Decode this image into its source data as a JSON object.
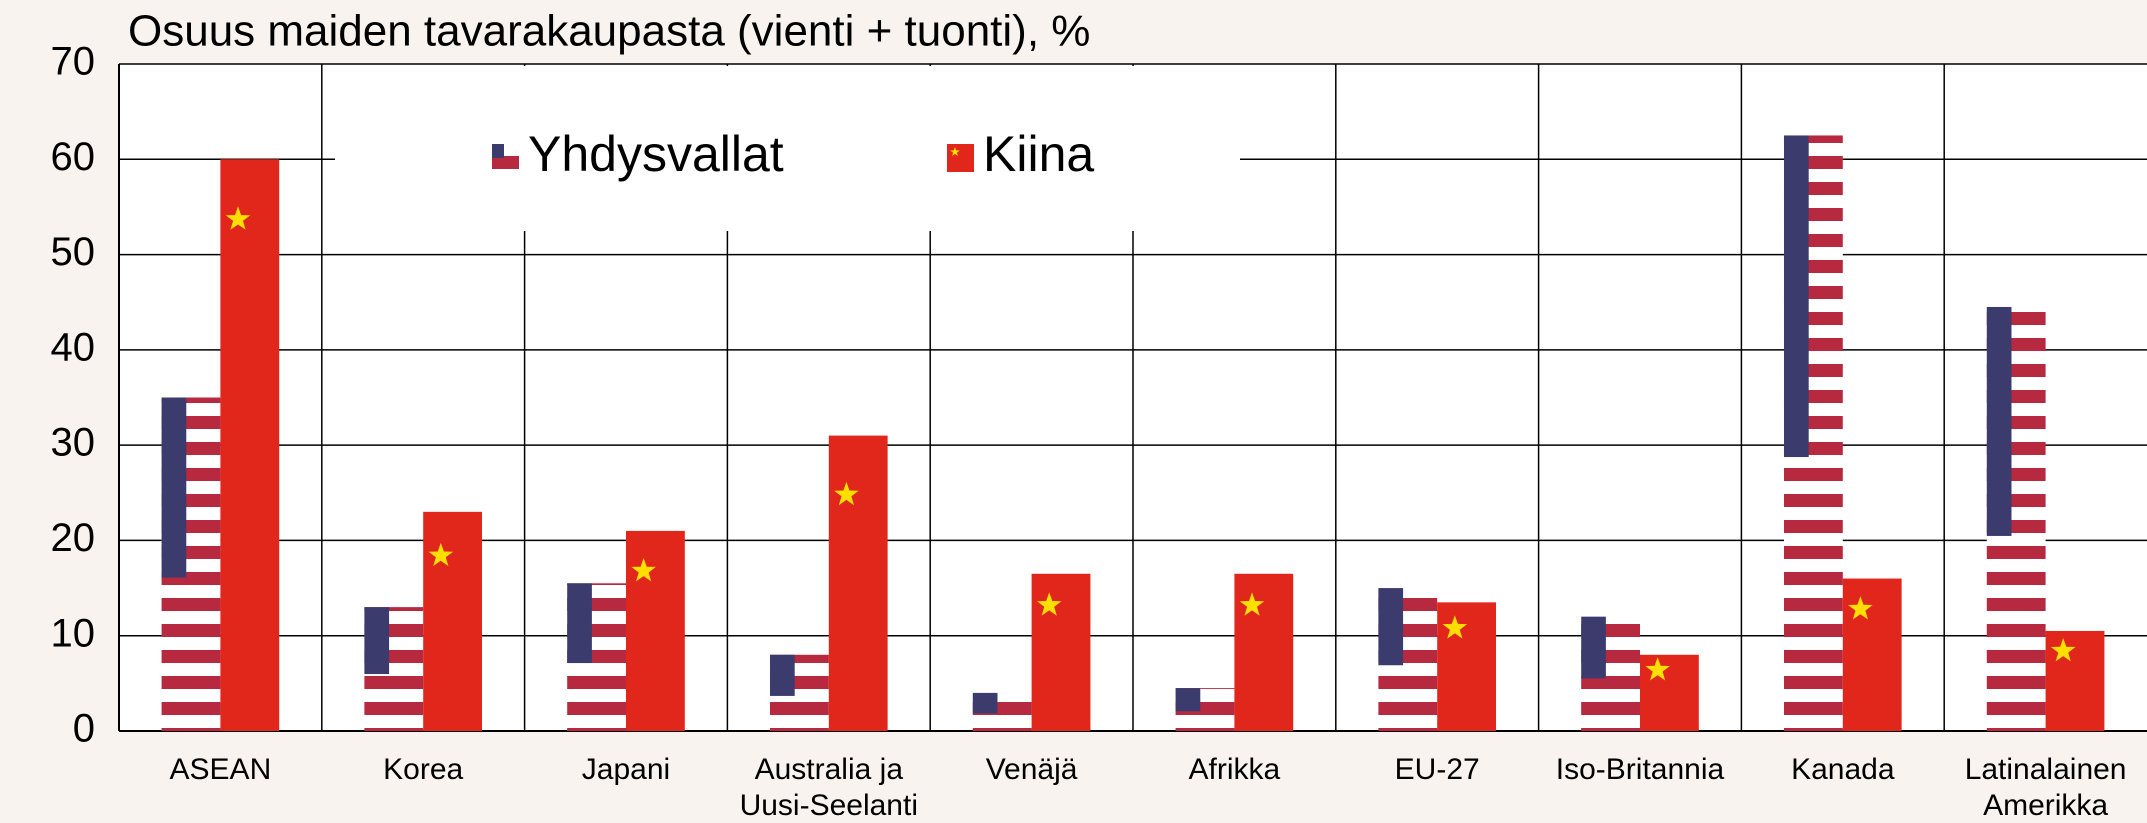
{
  "chart_data": {
    "type": "bar",
    "title": "Osuus maiden tavarakaupasta (vienti + tuonti), %",
    "categories": [
      "ASEAN",
      "Korea",
      "Japani",
      "Australia ja\nUusi-Seelanti",
      "Venäjä",
      "Afrikka",
      "EU-27",
      "Iso-Britannia",
      "Kanada",
      "Latinalainen\nAmerikka"
    ],
    "series": [
      {
        "name": "Yhdysvallat",
        "color": "#b7293f",
        "values": [
          35,
          13,
          15.5,
          8,
          4,
          4.5,
          15,
          12,
          62.5,
          44.5
        ]
      },
      {
        "name": "Kiina",
        "color": "#e1261c",
        "values": [
          60,
          23,
          21,
          31,
          16.5,
          16.5,
          13.5,
          8,
          16,
          10.5
        ]
      }
    ],
    "ylim": [
      0,
      70
    ],
    "yticks": [
      0,
      10,
      20,
      30,
      40,
      50,
      60,
      70
    ],
    "grid": true
  }
}
